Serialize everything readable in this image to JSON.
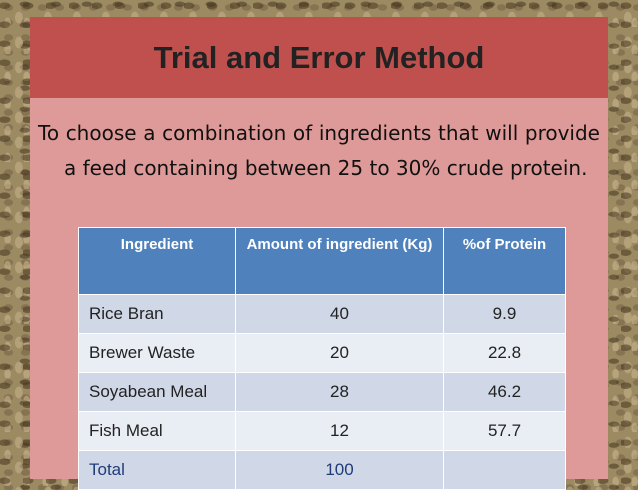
{
  "slide": {
    "title": "Trial and Error Method",
    "body": "To choose a combination of ingredients that will provide a feed containing between 25 to 30% crude protein."
  },
  "table": {
    "headers": [
      "Ingredient",
      "Amount of ingredient (Kg)",
      "%of  Protein"
    ],
    "rows": [
      [
        "Rice Bran",
        "40",
        "9.9"
      ],
      [
        "Brewer Waste",
        "20",
        "22.8"
      ],
      [
        "Soyabean Meal",
        "28",
        "46.2"
      ],
      [
        "Fish Meal",
        "12",
        "57.7"
      ]
    ],
    "total": [
      "Total",
      "100",
      ""
    ]
  },
  "colors": {
    "title_bar": "#c0504d",
    "panel": "#de9a98",
    "table_header": "#4f81bd",
    "row_dark": "#d0d8e8",
    "row_light": "#e9edf4",
    "total_text": "#1f3b78"
  }
}
